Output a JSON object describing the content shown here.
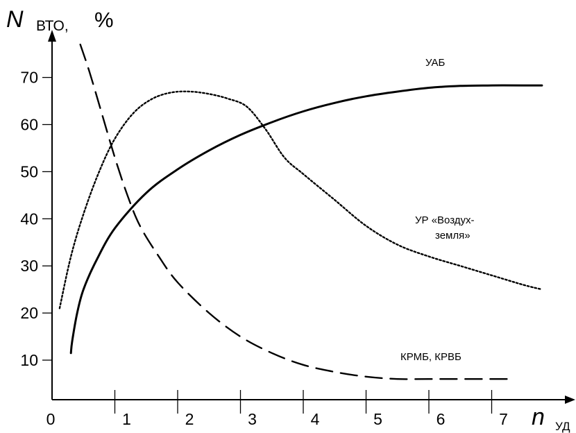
{
  "chart_data": {
    "type": "line",
    "ylabel": {
      "var": "N",
      "sub": "ВТО,",
      "unit": "%"
    },
    "xlabel": {
      "var": "n",
      "sub": "УД"
    },
    "origin_label": "0",
    "x_ticks": [
      "1",
      "2",
      "3",
      "4",
      "5",
      "6",
      "7"
    ],
    "y_ticks": [
      "10",
      "20",
      "30",
      "40",
      "50",
      "60",
      "70"
    ],
    "xlim": [
      0,
      8.3
    ],
    "ylim": [
      4,
      82
    ],
    "grid": false,
    "series": [
      {
        "name": "УАБ",
        "style": "solid",
        "x": [
          0.3,
          0.32,
          0.4,
          0.5,
          0.7,
          1.0,
          1.5,
          2.0,
          2.5,
          3.0,
          3.5,
          4.0,
          4.5,
          5.0,
          5.5,
          6.0,
          6.5,
          7.0,
          7.5,
          7.8
        ],
        "y": [
          11.5,
          14,
          20,
          25,
          31,
          38,
          45.5,
          50.5,
          54.5,
          57.8,
          60.5,
          62.8,
          64.6,
          66,
          67,
          67.8,
          68.2,
          68.3,
          68.3,
          68.3
        ]
      },
      {
        "name": "УР «Воздух-земля»",
        "style": "dotted",
        "x": [
          0.12,
          0.3,
          0.5,
          0.75,
          1.0,
          1.3,
          1.6,
          1.9,
          2.2,
          2.5,
          2.8,
          3.1,
          3.4,
          3.7,
          4.0,
          4.5,
          5.0,
          5.5,
          6.0,
          6.5,
          7.0,
          7.5,
          7.8
        ],
        "y": [
          21,
          32,
          41,
          50,
          57,
          62.5,
          65.5,
          66.8,
          67,
          66.5,
          65.5,
          63.8,
          59,
          53,
          49.5,
          44,
          38.5,
          34.5,
          32,
          30,
          28,
          26,
          25
        ]
      },
      {
        "name": "КРМБ, КРВБ",
        "style": "dashed",
        "x": [
          0.45,
          0.6,
          0.8,
          1.0,
          1.2,
          1.4,
          1.7,
          2.0,
          2.5,
          3.0,
          3.5,
          4.0,
          4.5,
          5.0,
          5.5,
          6.0,
          6.5,
          7.0,
          7.35
        ],
        "y": [
          77,
          71,
          62,
          53,
          45,
          38.5,
          32,
          26.5,
          20,
          15,
          11.5,
          9,
          7.5,
          6.5,
          6,
          6,
          6,
          6,
          6
        ]
      }
    ],
    "annotations": {
      "uab": "УАБ",
      "ur_line1": "УР «Воздух-",
      "ur_line2": "земля»",
      "krmb": "КРМБ, КРВБ"
    }
  }
}
